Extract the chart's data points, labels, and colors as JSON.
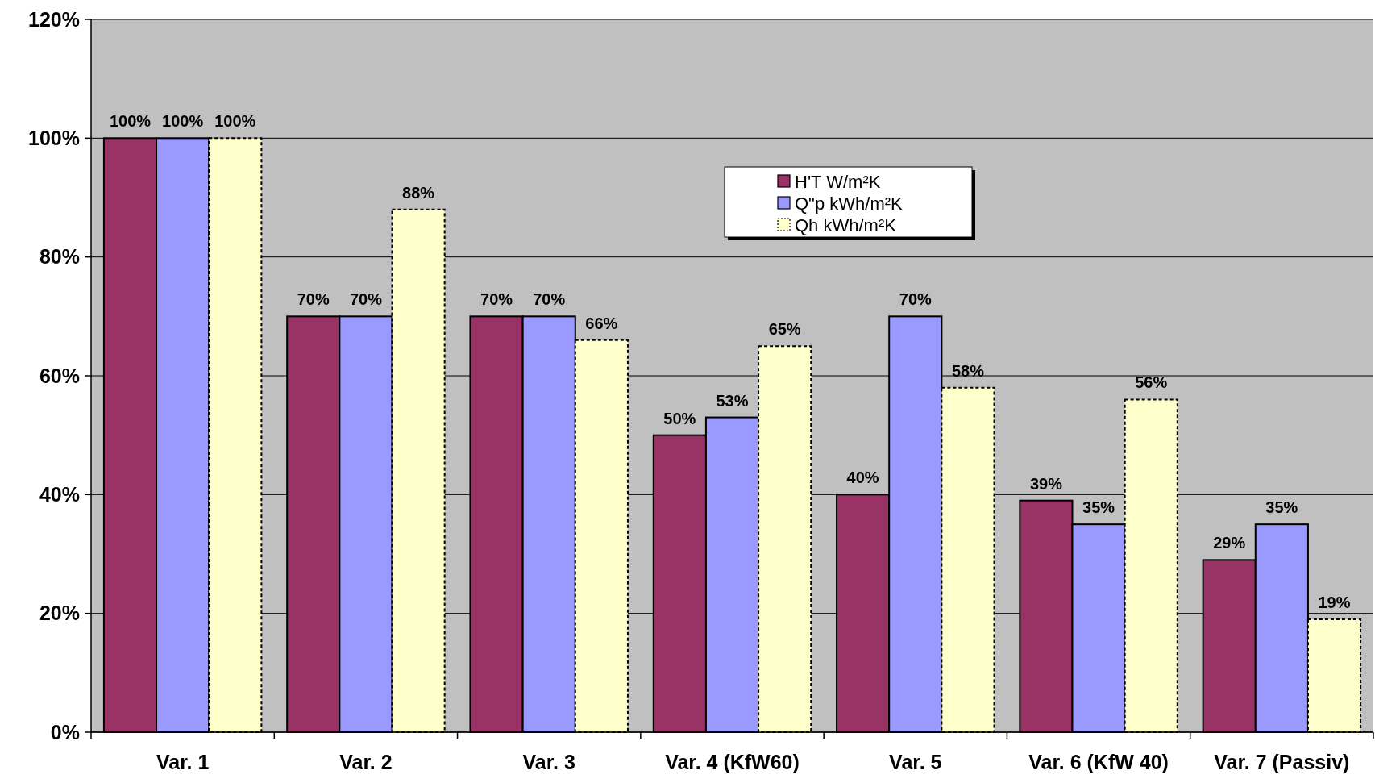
{
  "chart_data": {
    "type": "bar",
    "categories": [
      "Var. 1",
      "Var. 2",
      "Var. 3",
      "Var. 4 (KfW60)",
      "Var. 5",
      "Var. 6 (KfW 40)",
      "Var. 7 (Passiv)"
    ],
    "series": [
      {
        "name": "H'T W/m²K",
        "color": "#993366",
        "values": [
          100,
          70,
          70,
          50,
          40,
          39,
          29
        ],
        "value_labels": [
          "100%",
          "70%",
          "70%",
          "50%",
          "40%",
          "39%",
          "29%"
        ]
      },
      {
        "name": "Q\"p kWh/m²K",
        "color": "#9999ff",
        "values": [
          100,
          70,
          70,
          53,
          70,
          35,
          35
        ],
        "value_labels": [
          "100%",
          "70%",
          "70%",
          "53%",
          "70%",
          "35%",
          "35%"
        ]
      },
      {
        "name": "Qh kWh/m²K",
        "color": "#ffffcc",
        "values": [
          100,
          88,
          66,
          65,
          58,
          56,
          19
        ],
        "value_labels": [
          "100%",
          "88%",
          "66%",
          "65%",
          "58%",
          "56%",
          "19%"
        ],
        "line_style": "dashed"
      }
    ],
    "ylim": [
      0,
      120
    ],
    "yticks": [
      {
        "value": 0,
        "label": "0%"
      },
      {
        "value": 20,
        "label": "20%"
      },
      {
        "value": 40,
        "label": "40%"
      },
      {
        "value": 60,
        "label": "60%"
      },
      {
        "value": 80,
        "label": "80%"
      },
      {
        "value": 100,
        "label": "100%"
      },
      {
        "value": 120,
        "label": "120%"
      }
    ],
    "grid": "y",
    "legend": "top"
  }
}
